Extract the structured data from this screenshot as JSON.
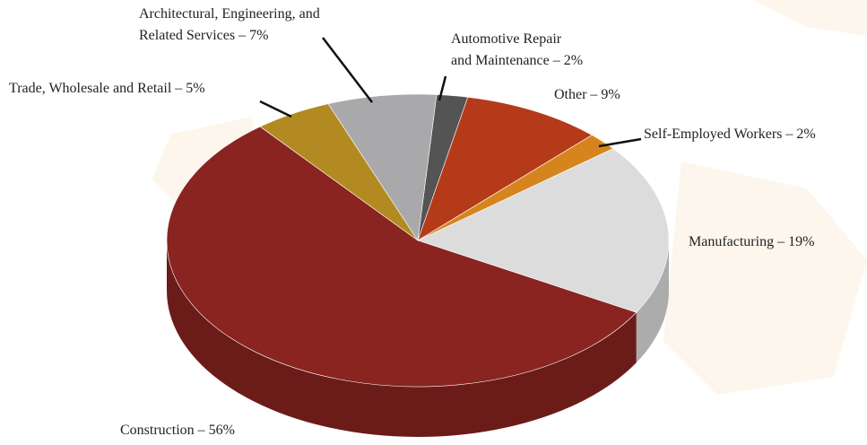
{
  "chart_data": {
    "type": "pie",
    "categories": [
      "Automotive Repair and Maintenance",
      "Other",
      "Self-Employed Workers",
      "Manufacturing",
      "Construction",
      "Trade, Wholesale and Retail",
      "Architectural, Engineering, and Related Services"
    ],
    "values": [
      2,
      9,
      2,
      19,
      56,
      5,
      7
    ],
    "value_labels": [
      [
        "Automotive Repair",
        "and Maintenance – 2%"
      ],
      [
        "Other – 9%"
      ],
      [
        "Self-Employed Workers – 2%"
      ],
      [
        "Manufacturing – 19%"
      ],
      [
        "Construction – 56%"
      ],
      [
        "Trade, Wholesale and Retail – 5%"
      ],
      [
        "Architectural, Engineering, and",
        "Related Services – 7%"
      ]
    ],
    "colors": [
      "#545454",
      "#b43a1a",
      "#d6851e",
      "#dcdcdd",
      "#892420",
      "#b38a22",
      "#a9a9ac"
    ]
  }
}
